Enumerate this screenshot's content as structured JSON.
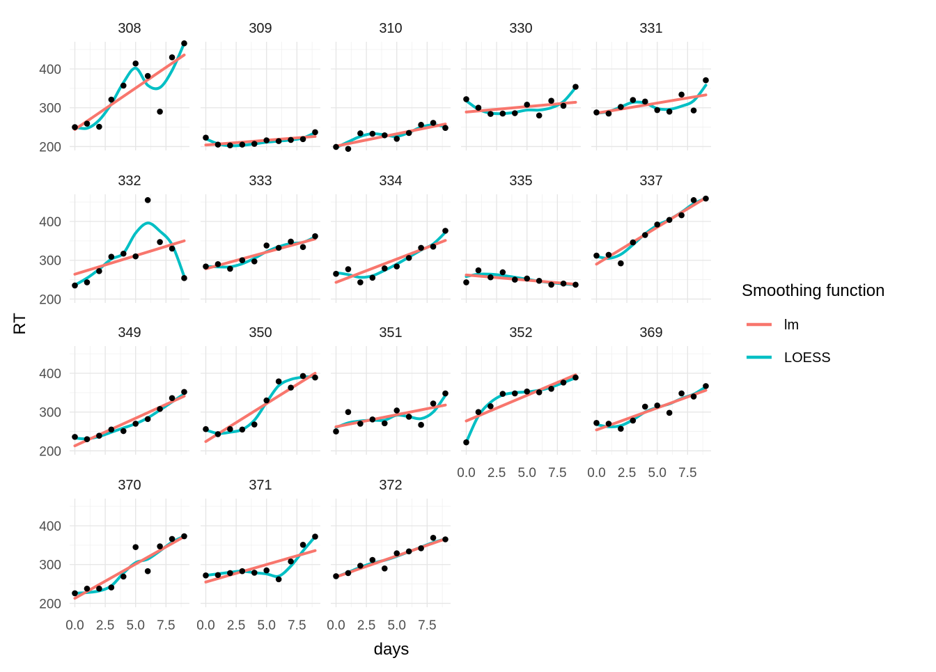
{
  "chart_data": {
    "type": "scatter",
    "xlabel": "days",
    "ylabel": "RT",
    "xlim": [
      0,
      9
    ],
    "ylim": [
      190,
      470
    ],
    "x_ticks": [
      0,
      2.5,
      5,
      7.5
    ],
    "x_tick_labels": [
      "0.0",
      "2.5",
      "5.0",
      "7.5"
    ],
    "y_ticks": [
      200,
      300,
      400
    ],
    "y_tick_labels": [
      "200",
      "300",
      "400"
    ],
    "grid": true,
    "legend": {
      "title": "Smoothing function",
      "placement": "right",
      "entries": [
        {
          "name": "lm",
          "color": "#F8766D"
        },
        {
          "name": "LOESS",
          "color": "#00BFC4"
        }
      ]
    },
    "point_color": "#000000",
    "x": [
      0,
      1,
      2,
      3,
      4,
      5,
      6,
      7,
      8,
      9
    ],
    "panels": [
      {
        "label": "308",
        "y": [
          250,
          259,
          251,
          321,
          357,
          414,
          382,
          290,
          430,
          466
        ],
        "lm": [
          244,
          436
        ],
        "loess": [
          250,
          247,
          268,
          310,
          365,
          402,
          358,
          352,
          396,
          466
        ]
      },
      {
        "label": "309",
        "y": [
          223,
          205,
          203,
          205,
          207,
          216,
          214,
          217,
          219,
          237
        ],
        "lm": [
          204,
          226
        ],
        "loess": [
          220,
          207,
          202,
          203,
          207,
          211,
          214,
          217,
          222,
          236
        ]
      },
      {
        "label": "310",
        "y": [
          199,
          194,
          234,
          233,
          229,
          220,
          235,
          256,
          261,
          248
        ],
        "lm": [
          201,
          258
        ],
        "loess": [
          197,
          212,
          226,
          233,
          230,
          226,
          236,
          250,
          256,
          251
        ]
      },
      {
        "label": "330",
        "y": [
          322,
          300,
          284,
          285,
          286,
          308,
          280,
          318,
          305,
          354
        ],
        "lm": [
          289,
          314
        ],
        "loess": [
          318,
          296,
          286,
          285,
          288,
          294,
          294,
          300,
          316,
          352
        ]
      },
      {
        "label": "331",
        "y": [
          288,
          285,
          302,
          320,
          316,
          294,
          290,
          334,
          293,
          371
        ],
        "lm": [
          286,
          333
        ],
        "loess": [
          286,
          290,
          302,
          314,
          312,
          298,
          296,
          304,
          318,
          358
        ]
      },
      {
        "label": "332",
        "y": [
          235,
          243,
          272,
          309,
          317,
          310,
          455,
          347,
          330,
          254
        ],
        "lm": [
          264,
          350
        ],
        "loess": [
          236,
          254,
          277,
          303,
          318,
          370,
          396,
          375,
          340,
          258
        ]
      },
      {
        "label": "333",
        "y": [
          284,
          290,
          278,
          300,
          297,
          338,
          332,
          348,
          334,
          362
        ],
        "lm": [
          278,
          355
        ],
        "loess": [
          284,
          283,
          283,
          291,
          305,
          322,
          335,
          343,
          346,
          360
        ]
      },
      {
        "label": "334",
        "y": [
          265,
          277,
          243,
          255,
          279,
          284,
          306,
          332,
          335,
          376
        ],
        "lm": [
          243,
          351
        ],
        "loess": [
          268,
          263,
          256,
          260,
          274,
          290,
          308,
          326,
          342,
          372
        ]
      },
      {
        "label": "335",
        "y": [
          243,
          274,
          256,
          269,
          250,
          253,
          247,
          237,
          240,
          237
        ],
        "lm": [
          262,
          238
        ],
        "loess": [
          258,
          264,
          264,
          261,
          256,
          251,
          246,
          242,
          239,
          237
        ]
      },
      {
        "label": "337",
        "y": [
          312,
          314,
          292,
          346,
          365,
          392,
          404,
          416,
          455,
          459
        ],
        "lm": [
          290,
          461
        ],
        "loess": [
          310,
          305,
          315,
          340,
          368,
          390,
          405,
          424,
          446,
          460
        ]
      },
      {
        "label": "349",
        "y": [
          236,
          230,
          239,
          255,
          251,
          270,
          282,
          308,
          336,
          352
        ],
        "lm": [
          213,
          341
        ],
        "loess": [
          233,
          231,
          237,
          248,
          259,
          270,
          285,
          305,
          326,
          347
        ]
      },
      {
        "label": "350",
        "y": [
          256,
          243,
          256,
          255,
          268,
          330,
          379,
          363,
          393,
          389
        ],
        "lm": [
          224,
          400
        ],
        "loess": [
          254,
          245,
          248,
          255,
          279,
          325,
          368,
          384,
          390,
          391
        ]
      },
      {
        "label": "351",
        "y": [
          250,
          300,
          270,
          281,
          271,
          304,
          288,
          267,
          322,
          348
        ],
        "lm": [
          262,
          318
        ],
        "loess": [
          260,
          272,
          277,
          279,
          279,
          292,
          288,
          283,
          300,
          343
        ]
      },
      {
        "label": "352",
        "y": [
          222,
          300,
          315,
          347,
          348,
          353,
          351,
          360,
          376,
          389
        ],
        "lm": [
          277,
          396
        ],
        "loess": [
          222,
          290,
          325,
          344,
          350,
          352,
          356,
          364,
          376,
          388
        ]
      },
      {
        "label": "369",
        "y": [
          272,
          270,
          257,
          278,
          314,
          317,
          298,
          348,
          340,
          367
        ],
        "lm": [
          254,
          356
        ],
        "loess": [
          268,
          262,
          265,
          280,
          300,
          312,
          321,
          335,
          346,
          365
        ]
      },
      {
        "label": "370",
        "y": [
          226,
          238,
          238,
          241,
          269,
          345,
          283,
          347,
          366,
          373
        ],
        "lm": [
          213,
          372
        ],
        "loess": [
          226,
          228,
          232,
          245,
          278,
          305,
          314,
          335,
          358,
          373
        ]
      },
      {
        "label": "371",
        "y": [
          272,
          273,
          278,
          283,
          279,
          285,
          262,
          308,
          351,
          372
        ],
        "lm": [
          255,
          336
        ],
        "loess": [
          272,
          276,
          280,
          283,
          279,
          276,
          270,
          296,
          335,
          372
        ]
      },
      {
        "label": "372",
        "y": [
          270,
          278,
          297,
          312,
          290,
          329,
          334,
          342,
          369,
          365
        ],
        "lm": [
          268,
          366
        ],
        "loess": [
          268,
          280,
          293,
          304,
          311,
          321,
          333,
          345,
          357,
          366
        ]
      }
    ]
  }
}
